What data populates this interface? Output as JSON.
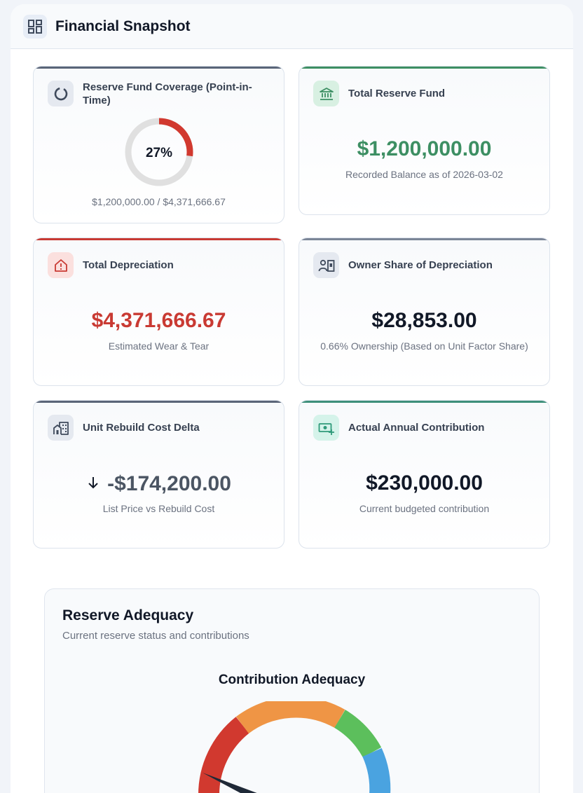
{
  "header": {
    "title": "Financial Snapshot",
    "icon": "dashboard-icon"
  },
  "cards": {
    "coverage": {
      "title": "Reserve Fund Coverage (Point-in-Time)",
      "percent_label": "27%",
      "percent": 0.27,
      "detail": "$1,200,000.00 / $4,371,666.67",
      "colors": {
        "arc": "#d1392f",
        "track": "#e0e0e0",
        "bar": "#5a6578"
      }
    },
    "reserve": {
      "title": "Total Reserve Fund",
      "value": "$1,200,000.00",
      "subtitle": "Recorded Balance as of 2026-03-02",
      "colors": {
        "value": "#3d8f63",
        "bar": "#3d8f63"
      }
    },
    "depreciation": {
      "title": "Total Depreciation",
      "value": "$4,371,666.67",
      "subtitle": "Estimated Wear & Tear",
      "colors": {
        "value": "#c93a33",
        "bar": "#c93a33"
      }
    },
    "owner_share": {
      "title": "Owner Share of Depreciation",
      "value": "$28,853.00",
      "subtitle": "0.66% Ownership (Based on Unit Factor Share)",
      "colors": {
        "value": "#111827",
        "bar": "#7b8597"
      }
    },
    "rebuild": {
      "title": "Unit Rebuild Cost Delta",
      "value": "-$174,200.00",
      "subtitle": "List Price vs Rebuild Cost",
      "icon": "arrow-down-icon",
      "colors": {
        "value": "#4b5563",
        "bar": "#5a6578"
      }
    },
    "contribution": {
      "title": "Actual Annual Contribution",
      "value": "$230,000.00",
      "subtitle": "Current budgeted contribution",
      "colors": {
        "value": "#111827",
        "bar": "#3d8f7a"
      }
    }
  },
  "adequacy": {
    "title": "Reserve Adequacy",
    "subtitle": "Current reserve status and contributions",
    "gauge_title": "Contribution Adequacy",
    "gauge_colors": [
      "#d1392f",
      "#ef9545",
      "#5cbf5c",
      "#4aa3e0"
    ]
  }
}
